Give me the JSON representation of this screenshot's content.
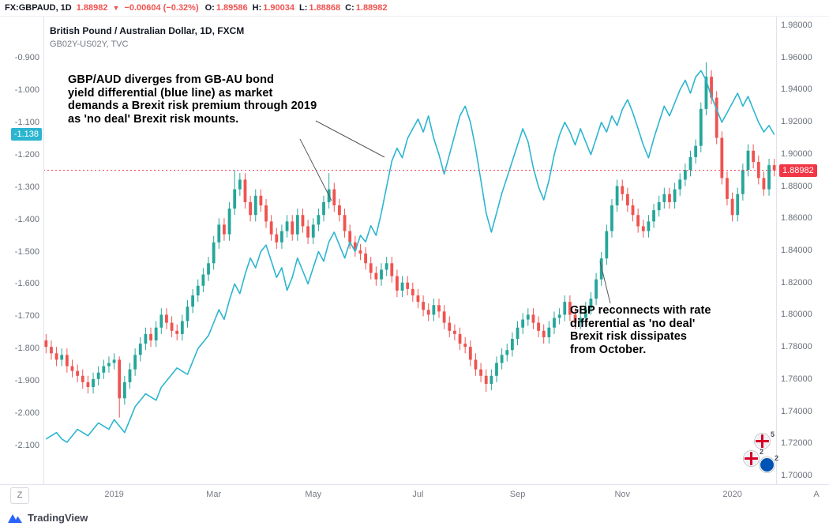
{
  "topbar": {
    "symbol": "FX:GBPAUD, 1D",
    "last": "1.88982",
    "direction_icon": "▼",
    "change": "−0.00604 (−0.32%)",
    "open_label": "O:",
    "open": "1.89586",
    "high_label": "H:",
    "high": "1.90034",
    "low_label": "L:",
    "low": "1.88868",
    "close_label": "C:",
    "close": "1.88982"
  },
  "legend": {
    "main": "British Pound / Australian Dollar, 1D, FXCM",
    "secondary": "GB02Y-US02Y, TVC"
  },
  "annotations": {
    "divergence": {
      "lines": [
        "GBP/AUD diverges from GB-AU bond",
        "yield differential (blue line) as market",
        "demands a Brexit risk premium through 2019",
        "as 'no deal' Brexit risk mounts."
      ]
    },
    "reconnect": {
      "lines": [
        "GBP reconnects with rate",
        "differential as 'no deal'",
        "Brexit risk dissipates",
        "from October."
      ]
    }
  },
  "axes": {
    "left": {
      "labels": [
        "-0.900",
        "-1.000",
        "-1.100",
        "-1.200",
        "-1.300",
        "-1.400",
        "-1.500",
        "-1.600",
        "-1.700",
        "-1.800",
        "-1.900",
        "-2.000",
        "-2.100"
      ],
      "tag": "-1.138"
    },
    "right": {
      "labels": [
        "1.98000",
        "1.96000",
        "1.94000",
        "1.92000",
        "1.90000",
        "1.88000",
        "1.86000",
        "1.84000",
        "1.82000",
        "1.80000",
        "1.78000",
        "1.76000",
        "1.74000",
        "1.72000",
        "1.70000"
      ],
      "tag": "1.88982"
    },
    "time": {
      "labels": [
        {
          "text": "2019",
          "i": 13
        },
        {
          "text": "Mar",
          "i": 32
        },
        {
          "text": "May",
          "i": 51
        },
        {
          "text": "Jul",
          "i": 71
        },
        {
          "text": "Sep",
          "i": 90
        },
        {
          "text": "Nov",
          "i": 110
        },
        {
          "text": "2020",
          "i": 131
        }
      ],
      "left_button": "Z",
      "right_button": "A"
    }
  },
  "events": {
    "badges": [
      "5",
      "2",
      "2"
    ]
  },
  "footer": {
    "brand": "TradingView"
  },
  "colors": {
    "up": "#26a69a",
    "down": "#ef5350",
    "line": "#2cb5d0",
    "accent_red": "#f23645",
    "arrow": "#55585e"
  },
  "chart_data": {
    "type": "candlestick+line",
    "title": "British Pound / Australian Dollar, 1D, FXCM",
    "overlay_series": "GB02Y-US02Y, TVC (bond yield differential, cyan line, left scale)",
    "price_axis": {
      "side": "right",
      "min": 1.7,
      "max": 1.98
    },
    "yield_axis": {
      "side": "left",
      "min": -2.1,
      "max": -0.9
    },
    "last_price": 1.88982,
    "last_yield": -1.138,
    "x_range_note": "Daily bars, Dec 2018 through Jan 2020, sampled to 140 points",
    "candles": [
      [
        1.784,
        1.788,
        1.776,
        1.78
      ],
      [
        1.78,
        1.784,
        1.772,
        1.776
      ],
      [
        1.776,
        1.78,
        1.768,
        1.772
      ],
      [
        1.772,
        1.779,
        1.768,
        1.775
      ],
      [
        1.775,
        1.779,
        1.764,
        1.768
      ],
      [
        1.768,
        1.772,
        1.761,
        1.765
      ],
      [
        1.765,
        1.769,
        1.758,
        1.762
      ],
      [
        1.762,
        1.766,
        1.754,
        1.758
      ],
      [
        1.758,
        1.762,
        1.751,
        1.755
      ],
      [
        1.755,
        1.764,
        1.751,
        1.76
      ],
      [
        1.76,
        1.768,
        1.756,
        1.764
      ],
      [
        1.764,
        1.772,
        1.76,
        1.768
      ],
      [
        1.768,
        1.774,
        1.764,
        1.77
      ],
      [
        1.77,
        1.776,
        1.766,
        1.772
      ],
      [
        1.772,
        1.774,
        1.736,
        1.748
      ],
      [
        1.748,
        1.762,
        1.744,
        1.758
      ],
      [
        1.758,
        1.77,
        1.754,
        1.766
      ],
      [
        1.766,
        1.779,
        1.762,
        1.775
      ],
      [
        1.775,
        1.786,
        1.771,
        1.782
      ],
      [
        1.782,
        1.792,
        1.778,
        1.788
      ],
      [
        1.788,
        1.792,
        1.78,
        1.784
      ],
      [
        1.784,
        1.796,
        1.78,
        1.792
      ],
      [
        1.792,
        1.804,
        1.788,
        1.8
      ],
      [
        1.8,
        1.804,
        1.791,
        1.795
      ],
      [
        1.795,
        1.799,
        1.786,
        1.79
      ],
      [
        1.79,
        1.794,
        1.784,
        1.788
      ],
      [
        1.788,
        1.8,
        1.784,
        1.796
      ],
      [
        1.796,
        1.809,
        1.792,
        1.805
      ],
      [
        1.805,
        1.816,
        1.801,
        1.812
      ],
      [
        1.812,
        1.822,
        1.808,
        1.818
      ],
      [
        1.818,
        1.829,
        1.814,
        1.825
      ],
      [
        1.825,
        1.836,
        1.821,
        1.832
      ],
      [
        1.832,
        1.849,
        1.828,
        1.845
      ],
      [
        1.845,
        1.86,
        1.841,
        1.856
      ],
      [
        1.856,
        1.86,
        1.846,
        1.85
      ],
      [
        1.85,
        1.87,
        1.846,
        1.866
      ],
      [
        1.866,
        1.89,
        1.862,
        1.878
      ],
      [
        1.878,
        1.888,
        1.874,
        1.884
      ],
      [
        1.884,
        1.888,
        1.866,
        1.87
      ],
      [
        1.87,
        1.874,
        1.858,
        1.862
      ],
      [
        1.862,
        1.878,
        1.858,
        1.874
      ],
      [
        1.874,
        1.878,
        1.864,
        1.868
      ],
      [
        1.868,
        1.872,
        1.854,
        1.858
      ],
      [
        1.858,
        1.862,
        1.846,
        1.85
      ],
      [
        1.85,
        1.854,
        1.841,
        1.845
      ],
      [
        1.845,
        1.856,
        1.841,
        1.852
      ],
      [
        1.852,
        1.862,
        1.848,
        1.858
      ],
      [
        1.858,
        1.862,
        1.846,
        1.85
      ],
      [
        1.85,
        1.866,
        1.846,
        1.862
      ],
      [
        1.862,
        1.866,
        1.851,
        1.855
      ],
      [
        1.855,
        1.859,
        1.844,
        1.848
      ],
      [
        1.848,
        1.86,
        1.844,
        1.856
      ],
      [
        1.856,
        1.866,
        1.852,
        1.862
      ],
      [
        1.862,
        1.874,
        1.858,
        1.87
      ],
      [
        1.87,
        1.888,
        1.866,
        1.878
      ],
      [
        1.878,
        1.882,
        1.864,
        1.868
      ],
      [
        1.868,
        1.872,
        1.858,
        1.862
      ],
      [
        1.862,
        1.866,
        1.848,
        1.852
      ],
      [
        1.852,
        1.856,
        1.841,
        1.845
      ],
      [
        1.845,
        1.849,
        1.836,
        1.84
      ],
      [
        1.84,
        1.844,
        1.834,
        1.838
      ],
      [
        1.838,
        1.842,
        1.828,
        1.832
      ],
      [
        1.832,
        1.836,
        1.822,
        1.826
      ],
      [
        1.826,
        1.83,
        1.818,
        1.822
      ],
      [
        1.822,
        1.832,
        1.818,
        1.828
      ],
      [
        1.828,
        1.836,
        1.824,
        1.832
      ],
      [
        1.832,
        1.836,
        1.82,
        1.824
      ],
      [
        1.824,
        1.828,
        1.811,
        1.815
      ],
      [
        1.815,
        1.824,
        1.811,
        1.82
      ],
      [
        1.82,
        1.824,
        1.812,
        1.816
      ],
      [
        1.816,
        1.82,
        1.808,
        1.812
      ],
      [
        1.812,
        1.816,
        1.804,
        1.808
      ],
      [
        1.808,
        1.812,
        1.799,
        1.803
      ],
      [
        1.803,
        1.807,
        1.796,
        1.8
      ],
      [
        1.8,
        1.81,
        1.796,
        1.806
      ],
      [
        1.806,
        1.81,
        1.798,
        1.802
      ],
      [
        1.802,
        1.806,
        1.791,
        1.795
      ],
      [
        1.795,
        1.799,
        1.786,
        1.79
      ],
      [
        1.79,
        1.794,
        1.784,
        1.788
      ],
      [
        1.788,
        1.792,
        1.778,
        1.782
      ],
      [
        1.782,
        1.786,
        1.776,
        1.78
      ],
      [
        1.78,
        1.784,
        1.768,
        1.772
      ],
      [
        1.772,
        1.776,
        1.762,
        1.766
      ],
      [
        1.766,
        1.77,
        1.758,
        1.762
      ],
      [
        1.762,
        1.766,
        1.752,
        1.757
      ],
      [
        1.757,
        1.766,
        1.753,
        1.762
      ],
      [
        1.762,
        1.774,
        1.758,
        1.77
      ],
      [
        1.77,
        1.779,
        1.766,
        1.775
      ],
      [
        1.775,
        1.782,
        1.771,
        1.778
      ],
      [
        1.778,
        1.789,
        1.774,
        1.785
      ],
      [
        1.785,
        1.796,
        1.781,
        1.792
      ],
      [
        1.792,
        1.801,
        1.788,
        1.797
      ],
      [
        1.797,
        1.804,
        1.793,
        1.8
      ],
      [
        1.8,
        1.804,
        1.791,
        1.795
      ],
      [
        1.795,
        1.799,
        1.786,
        1.79
      ],
      [
        1.79,
        1.794,
        1.782,
        1.786
      ],
      [
        1.786,
        1.796,
        1.782,
        1.792
      ],
      [
        1.792,
        1.802,
        1.788,
        1.798
      ],
      [
        1.798,
        1.804,
        1.794,
        1.8
      ],
      [
        1.8,
        1.812,
        1.796,
        1.808
      ],
      [
        1.808,
        1.812,
        1.796,
        1.8
      ],
      [
        1.8,
        1.804,
        1.791,
        1.795
      ],
      [
        1.795,
        1.802,
        1.791,
        1.798
      ],
      [
        1.798,
        1.808,
        1.794,
        1.804
      ],
      [
        1.804,
        1.814,
        1.8,
        1.81
      ],
      [
        1.81,
        1.826,
        1.806,
        1.822
      ],
      [
        1.822,
        1.839,
        1.818,
        1.835
      ],
      [
        1.835,
        1.856,
        1.831,
        1.852
      ],
      [
        1.852,
        1.872,
        1.848,
        1.868
      ],
      [
        1.868,
        1.884,
        1.864,
        1.88
      ],
      [
        1.88,
        1.884,
        1.871,
        1.875
      ],
      [
        1.875,
        1.879,
        1.864,
        1.868
      ],
      [
        1.868,
        1.872,
        1.858,
        1.862
      ],
      [
        1.862,
        1.866,
        1.851,
        1.855
      ],
      [
        1.855,
        1.859,
        1.848,
        1.852
      ],
      [
        1.852,
        1.862,
        1.848,
        1.858
      ],
      [
        1.858,
        1.869,
        1.854,
        1.865
      ],
      [
        1.865,
        1.874,
        1.861,
        1.87
      ],
      [
        1.87,
        1.879,
        1.866,
        1.875
      ],
      [
        1.875,
        1.879,
        1.866,
        1.87
      ],
      [
        1.87,
        1.882,
        1.866,
        1.878
      ],
      [
        1.878,
        1.888,
        1.874,
        1.884
      ],
      [
        1.884,
        1.894,
        1.88,
        1.89
      ],
      [
        1.89,
        1.902,
        1.886,
        1.898
      ],
      [
        1.898,
        1.909,
        1.894,
        1.905
      ],
      [
        1.905,
        1.932,
        1.901,
        1.928
      ],
      [
        1.928,
        1.957,
        1.924,
        1.948
      ],
      [
        1.948,
        1.952,
        1.931,
        1.935
      ],
      [
        1.935,
        1.939,
        1.906,
        1.91
      ],
      [
        1.91,
        1.914,
        1.881,
        1.885
      ],
      [
        1.885,
        1.889,
        1.868,
        1.872
      ],
      [
        1.872,
        1.876,
        1.858,
        1.862
      ],
      [
        1.862,
        1.879,
        1.858,
        1.875
      ],
      [
        1.875,
        1.894,
        1.871,
        1.89
      ],
      [
        1.89,
        1.906,
        1.886,
        1.902
      ],
      [
        1.902,
        1.906,
        1.891,
        1.895
      ],
      [
        1.895,
        1.899,
        1.881,
        1.885
      ],
      [
        1.885,
        1.889,
        1.874,
        1.878
      ],
      [
        1.878,
        1.897,
        1.874,
        1.893
      ],
      [
        1.893,
        1.897,
        1.886,
        1.8898
      ]
    ],
    "yield_line": [
      -2.08,
      -2.07,
      -2.06,
      -2.08,
      -2.09,
      -2.07,
      -2.05,
      -2.06,
      -2.07,
      -2.05,
      -2.03,
      -2.04,
      -2.05,
      -2.02,
      -2.04,
      -2.06,
      -2.02,
      -1.98,
      -1.96,
      -1.94,
      -1.95,
      -1.96,
      -1.92,
      -1.9,
      -1.88,
      -1.86,
      -1.87,
      -1.88,
      -1.84,
      -1.8,
      -1.78,
      -1.76,
      -1.72,
      -1.68,
      -1.71,
      -1.65,
      -1.6,
      -1.63,
      -1.57,
      -1.52,
      -1.55,
      -1.5,
      -1.48,
      -1.53,
      -1.58,
      -1.55,
      -1.62,
      -1.58,
      -1.52,
      -1.56,
      -1.6,
      -1.55,
      -1.5,
      -1.53,
      -1.47,
      -1.44,
      -1.48,
      -1.52,
      -1.47,
      -1.5,
      -1.45,
      -1.47,
      -1.42,
      -1.45,
      -1.38,
      -1.3,
      -1.22,
      -1.18,
      -1.21,
      -1.15,
      -1.12,
      -1.09,
      -1.13,
      -1.08,
      -1.15,
      -1.2,
      -1.26,
      -1.2,
      -1.14,
      -1.08,
      -1.05,
      -1.1,
      -1.18,
      -1.28,
      -1.38,
      -1.44,
      -1.38,
      -1.32,
      -1.27,
      -1.22,
      -1.17,
      -1.12,
      -1.16,
      -1.24,
      -1.3,
      -1.34,
      -1.28,
      -1.2,
      -1.14,
      -1.1,
      -1.13,
      -1.17,
      -1.12,
      -1.16,
      -1.2,
      -1.15,
      -1.1,
      -1.13,
      -1.08,
      -1.11,
      -1.06,
      -1.03,
      -1.07,
      -1.12,
      -1.17,
      -1.21,
      -1.15,
      -1.1,
      -1.05,
      -1.08,
      -1.04,
      -1.0,
      -0.97,
      -1.01,
      -0.96,
      -0.94,
      -0.97,
      -1.02,
      -1.06,
      -1.1,
      -1.07,
      -1.04,
      -1.01,
      -1.05,
      -1.02,
      -1.06,
      -1.1,
      -1.13,
      -1.11,
      -1.138
    ]
  }
}
